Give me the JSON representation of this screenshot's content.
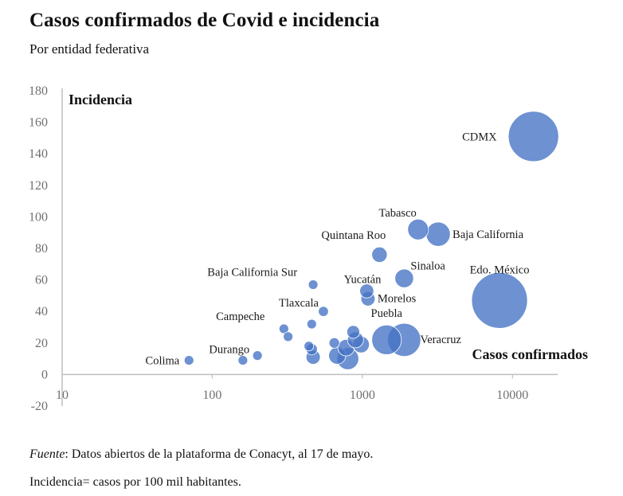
{
  "title": "Casos confirmados de Covid e incidencia",
  "subtitle": "Por entidad federativa",
  "footnote": {
    "source_label": "Fuente",
    "source_text": ": Datos abiertos de la plataforma de Conacyt, al 17 de mayo.",
    "incidence_note": "Incidencia= casos por 100 mil habitantes."
  },
  "colors": {
    "bubble": "#4472c4",
    "axis": "#bfbfbf"
  },
  "chart_data": {
    "type": "scatter",
    "subtype": "bubble",
    "title": "Casos confirmados de Covid e incidencia",
    "subtitle": "Por entidad federativa",
    "xlabel": "Casos confirmados",
    "ylabel": "Incidencia",
    "x_scale": "log",
    "xlim": [
      10,
      20000
    ],
    "ylim": [
      -20,
      180
    ],
    "x_ticks": [
      10,
      100,
      1000,
      10000
    ],
    "x_tick_labels": [
      "10",
      "100",
      "1000",
      "10000"
    ],
    "y_ticks": [
      -20,
      0,
      20,
      40,
      60,
      80,
      100,
      120,
      140,
      160,
      180
    ],
    "y_tick_labels": [
      "-20",
      "0",
      "20",
      "40",
      "60",
      "80",
      "100",
      "120",
      "140",
      "160",
      "180"
    ],
    "points": [
      {
        "label": "CDMX",
        "x": 13800,
        "y": 151,
        "size": 13800
      },
      {
        "label": "Edo. México",
        "x": 8200,
        "y": 47,
        "size": 17000
      },
      {
        "label": "Tabasco",
        "x": 2350,
        "y": 92,
        "size": 2350
      },
      {
        "label": "Baja California",
        "x": 3200,
        "y": 89,
        "size": 3200
      },
      {
        "label": "Quintana Roo",
        "x": 1300,
        "y": 76,
        "size": 1300
      },
      {
        "label": "Sinaloa",
        "x": 1900,
        "y": 61,
        "size": 1900
      },
      {
        "label": "Baja California Sur",
        "x": 470,
        "y": 57,
        "size": 470
      },
      {
        "label": "Yucatán",
        "x": 1070,
        "y": 53,
        "size": 1070
      },
      {
        "label": "Morelos",
        "x": 1090,
        "y": 48,
        "size": 1090
      },
      {
        "label": "Tlaxcala",
        "x": 550,
        "y": 40,
        "size": 550
      },
      {
        "label": "Campeche",
        "x": 300,
        "y": 29,
        "size": 300
      },
      {
        "label": "Puebla",
        "x": 1450,
        "y": 22,
        "size": 4800
      },
      {
        "label": "Veracruz",
        "x": 1900,
        "y": 22,
        "size": 6000
      },
      {
        "label": "Durango",
        "x": 200,
        "y": 12,
        "size": 200
      },
      {
        "label": "Colima",
        "x": 70,
        "y": 9,
        "size": 70
      },
      {
        "label": "",
        "x": 160,
        "y": 9,
        "size": 220
      },
      {
        "label": "",
        "x": 320,
        "y": 24,
        "size": 300
      },
      {
        "label": "",
        "x": 460,
        "y": 32,
        "size": 460
      },
      {
        "label": "",
        "x": 440,
        "y": 18,
        "size": 500
      },
      {
        "label": "",
        "x": 470,
        "y": 11,
        "size": 1100
      },
      {
        "label": "",
        "x": 460,
        "y": 16,
        "size": 700
      },
      {
        "label": "",
        "x": 650,
        "y": 20,
        "size": 600
      },
      {
        "label": "",
        "x": 680,
        "y": 12,
        "size": 1600
      },
      {
        "label": "",
        "x": 800,
        "y": 10,
        "size": 2600
      },
      {
        "label": "",
        "x": 900,
        "y": 22,
        "size": 1400
      },
      {
        "label": "",
        "x": 870,
        "y": 27,
        "size": 900
      },
      {
        "label": "",
        "x": 780,
        "y": 17,
        "size": 1500
      },
      {
        "label": "",
        "x": 980,
        "y": 19,
        "size": 1500
      }
    ]
  }
}
